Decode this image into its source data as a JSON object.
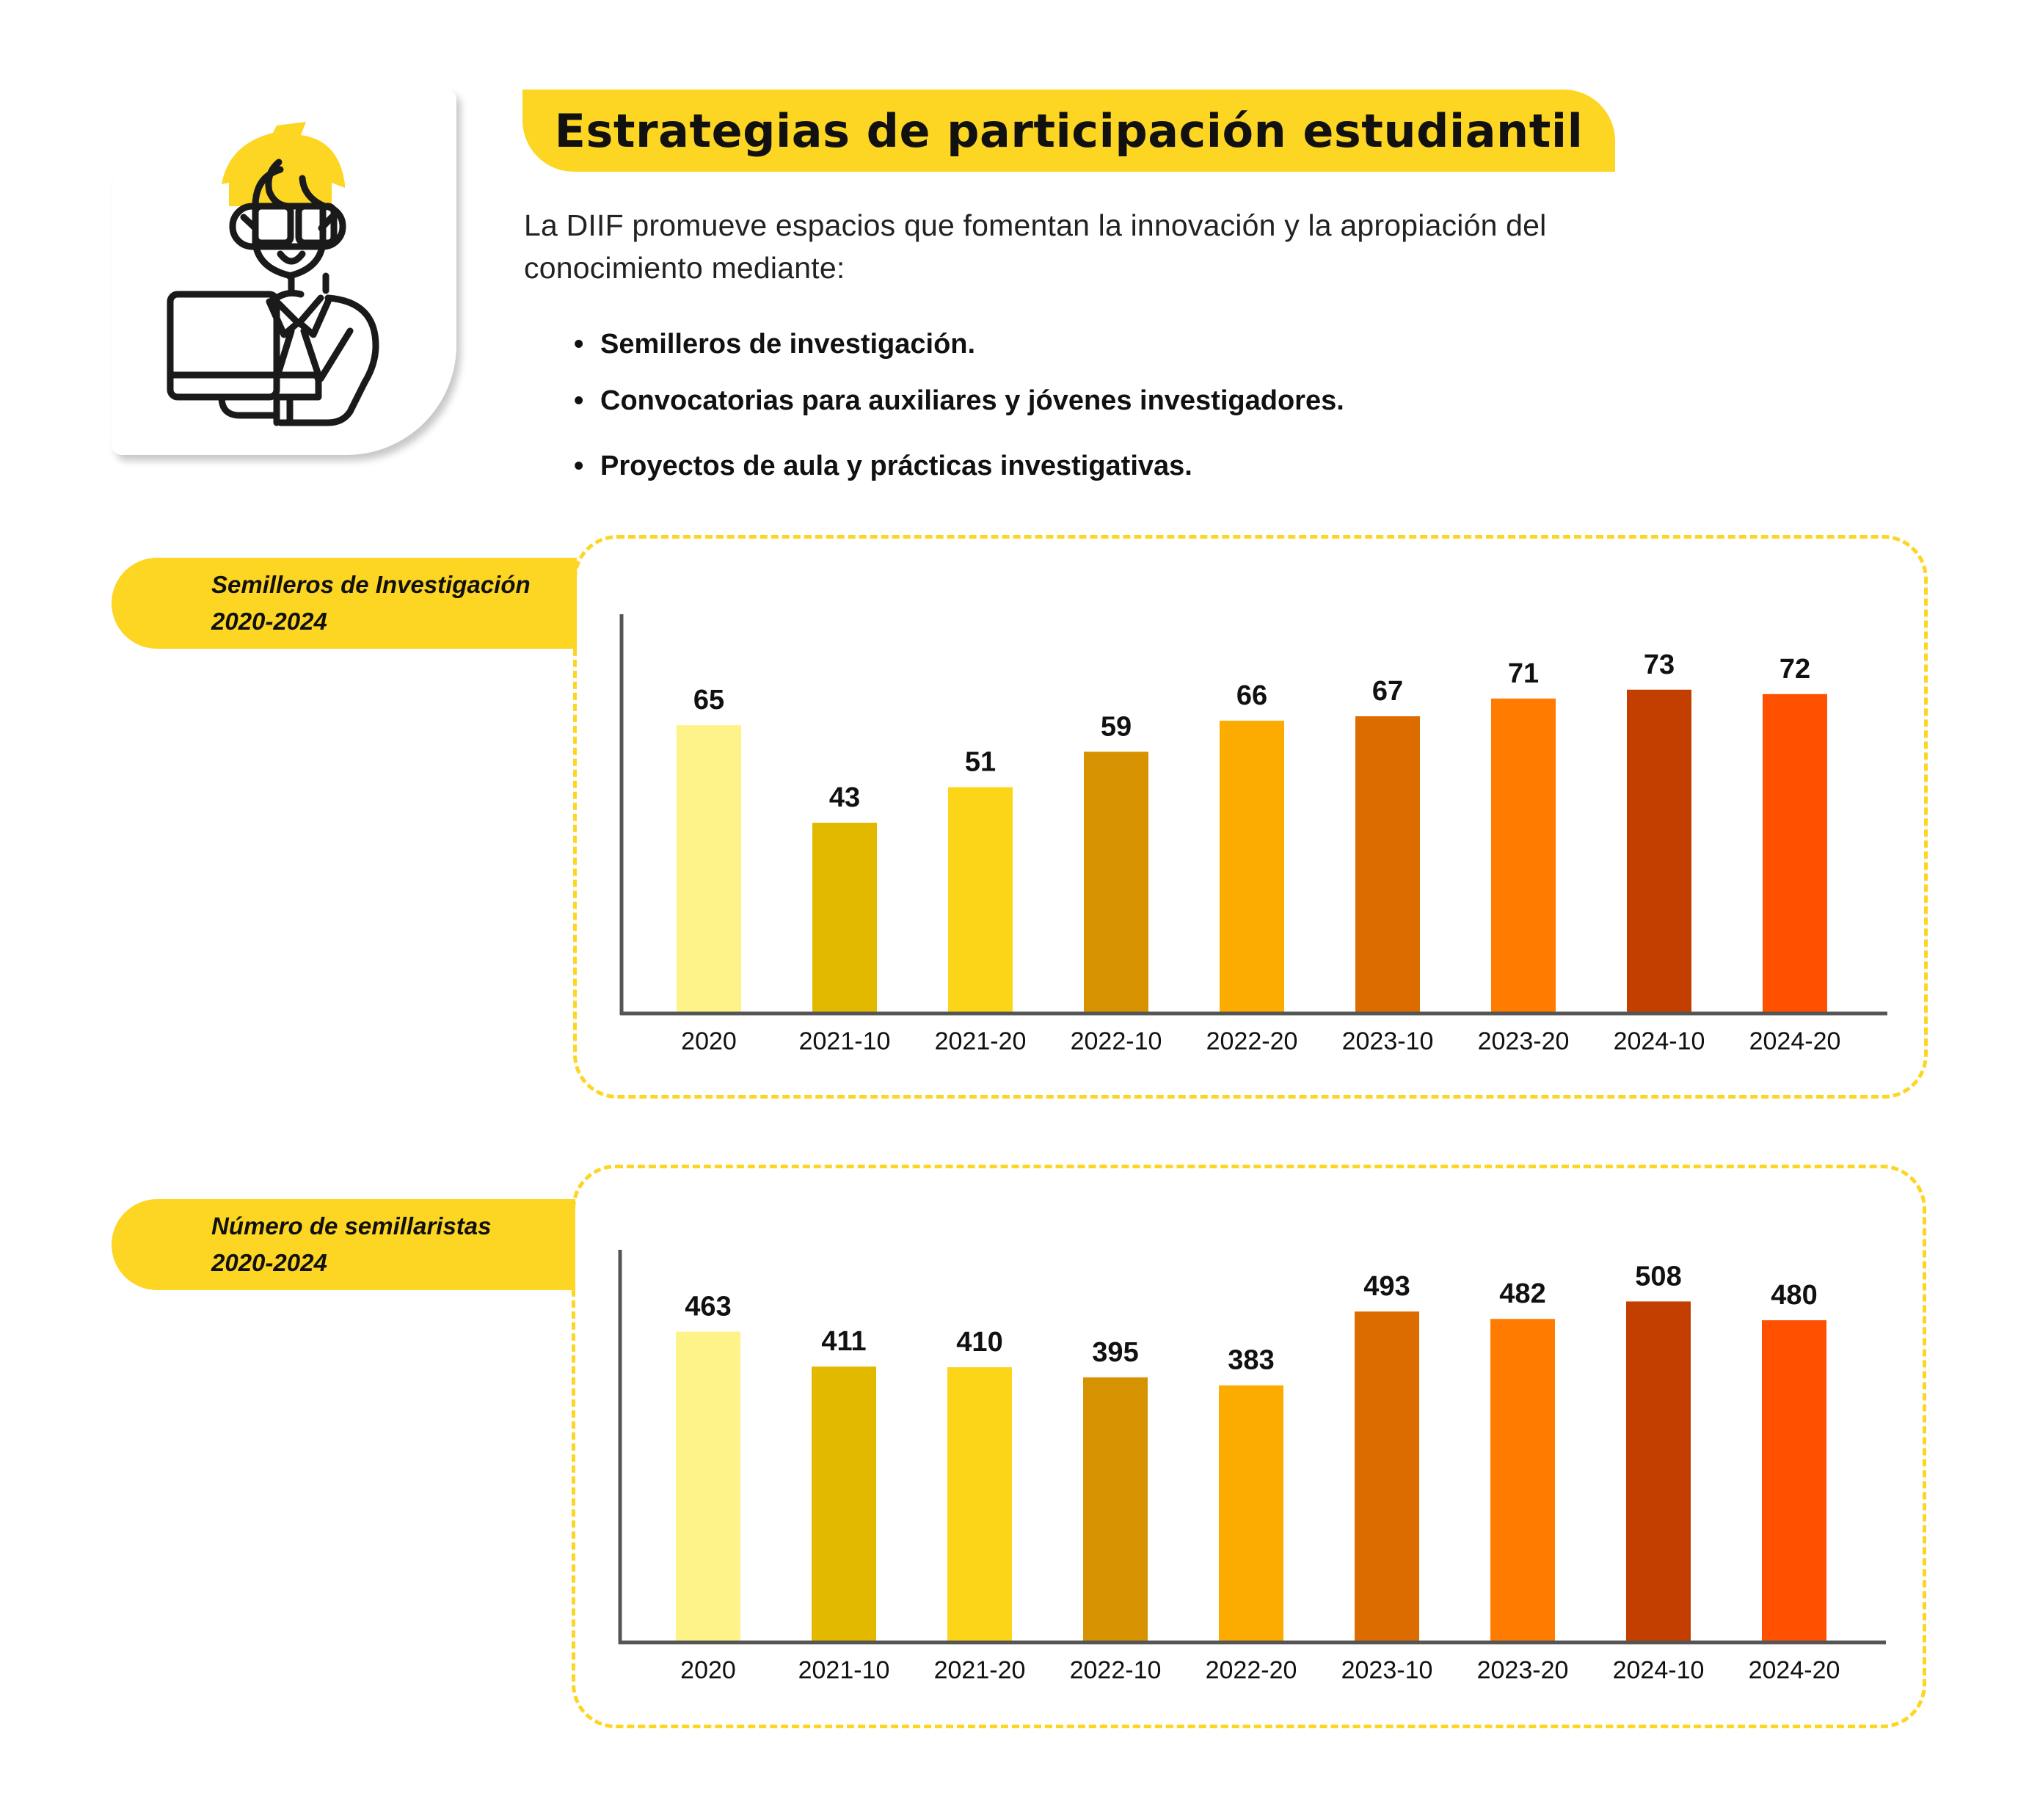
{
  "header": {
    "title": "Estrategias de participación estudiantil",
    "icon": "student-with-laptop-icon"
  },
  "intro": {
    "line1": "La DIIF promueve espacios que fomentan la innovación y la apropiación del",
    "line2": "conocimiento mediante:",
    "bullets": [
      "Semilleros de investigación.",
      "Convocatorias para auxiliares y jóvenes investigadores.",
      "Proyectos de aula y prácticas investigativas."
    ],
    "bullet_glyph": "•"
  },
  "colors": {
    "brand_yellow": "#FDD523",
    "axis": "#555555",
    "bars": [
      "#FEF388",
      "#E3B900",
      "#FDD518",
      "#D69200",
      "#FCAB00",
      "#DD6C00",
      "#FF7C00",
      "#C23F00",
      "#FF5000"
    ]
  },
  "chart_data": [
    {
      "type": "bar",
      "title": "Semilleros de Investigación",
      "subtitle": "2020-2024",
      "categories": [
        "2020",
        "2021-10",
        "2021-20",
        "2022-10",
        "2022-20",
        "2023-10",
        "2023-20",
        "2024-10",
        "2024-20"
      ],
      "values": [
        65,
        43,
        51,
        59,
        66,
        67,
        71,
        73,
        72
      ],
      "xlabel": "",
      "ylabel": "",
      "ylim": [
        0,
        90
      ],
      "grid": false,
      "data_labels": true,
      "legend": "none"
    },
    {
      "type": "bar",
      "title": "Número de semillaristas",
      "subtitle": "2020-2024",
      "categories": [
        "2020",
        "2021-10",
        "2021-20",
        "2022-10",
        "2022-20",
        "2023-10",
        "2023-20",
        "2024-10",
        "2024-20"
      ],
      "values": [
        463,
        411,
        410,
        395,
        383,
        493,
        482,
        508,
        480
      ],
      "xlabel": "",
      "ylabel": "",
      "ylim": [
        0,
        585
      ],
      "grid": false,
      "data_labels": true,
      "legend": "none"
    }
  ]
}
